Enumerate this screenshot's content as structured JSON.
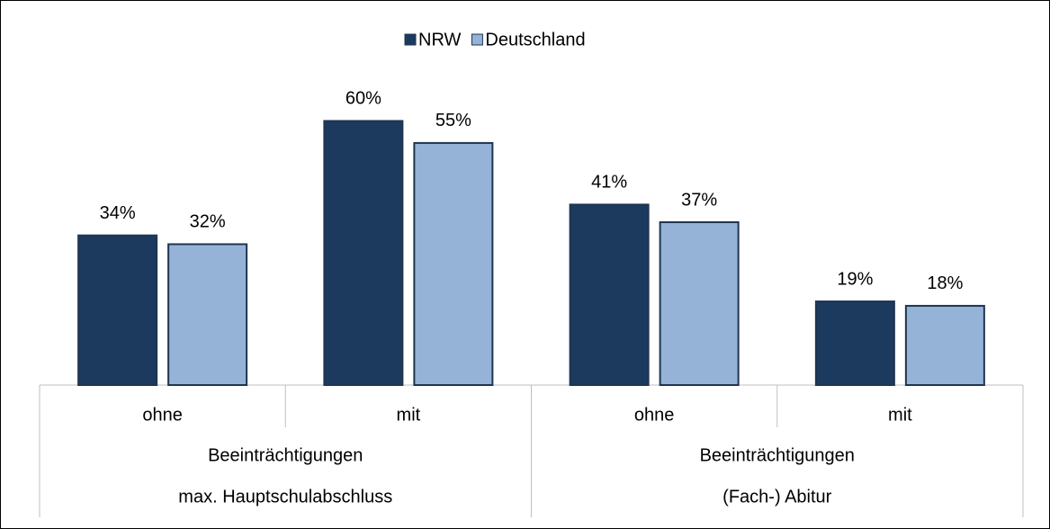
{
  "chart_data": {
    "type": "bar",
    "groups": [
      {
        "label": [
          "Beeinträchtigungen",
          "max. Hauptschulabschluss"
        ],
        "categories": [
          "ohne",
          "mit"
        ]
      },
      {
        "label": [
          "Beeinträchtigungen",
          "(Fach-) Abitur"
        ],
        "categories": [
          "ohne",
          "mit"
        ]
      }
    ],
    "series": [
      {
        "name": "NRW",
        "color": "#1b3a5e",
        "values": [
          34,
          60,
          41,
          19
        ],
        "value_labels": [
          "34%",
          "60%",
          "41%",
          "19%"
        ]
      },
      {
        "name": "Deutschland",
        "color": "#95b3d7",
        "values": [
          32,
          55,
          37,
          18
        ],
        "value_labels": [
          "32%",
          "55%",
          "37%",
          "18%"
        ]
      }
    ],
    "ylim": [
      0,
      65
    ],
    "legend": "top"
  }
}
